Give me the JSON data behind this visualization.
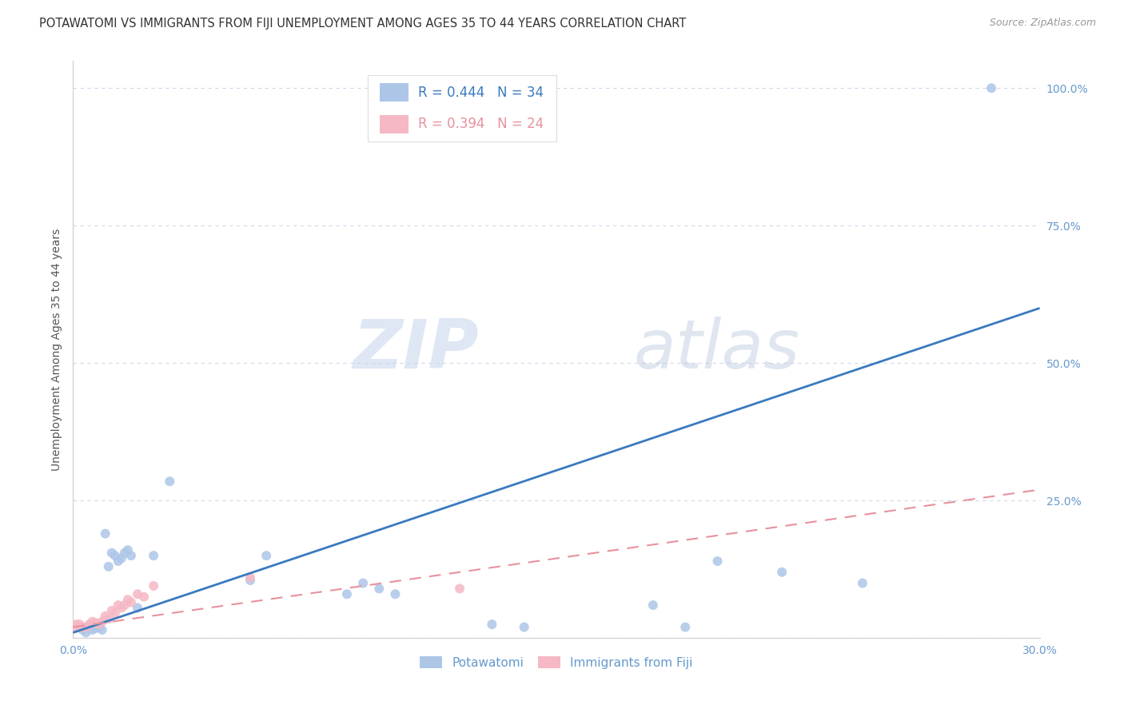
{
  "title": "POTAWATOMI VS IMMIGRANTS FROM FIJI UNEMPLOYMENT AMONG AGES 35 TO 44 YEARS CORRELATION CHART",
  "source": "Source: ZipAtlas.com",
  "ylabel": "Unemployment Among Ages 35 to 44 years",
  "legend_label1": "Potawatomi",
  "legend_label2": "Immigrants from Fiji",
  "r1": 0.444,
  "n1": 34,
  "r2": 0.394,
  "n2": 24,
  "xmin": 0.0,
  "xmax": 0.3,
  "ymin": 0.0,
  "ymax": 1.05,
  "xticks": [
    0.0,
    0.05,
    0.1,
    0.15,
    0.2,
    0.25,
    0.3
  ],
  "yticks": [
    0.0,
    0.25,
    0.5,
    0.75,
    1.0
  ],
  "ytick_labels": [
    "",
    "25.0%",
    "50.0%",
    "75.0%",
    "100.0%"
  ],
  "xtick_labels": [
    "0.0%",
    "",
    "",
    "",
    "",
    "",
    "30.0%"
  ],
  "axis_color": "#6699cc",
  "title_color": "#333333",
  "watermark_zip": "ZIP",
  "watermark_atlas": "atlas",
  "blue_scatter_x": [
    0.002,
    0.003,
    0.004,
    0.005,
    0.006,
    0.007,
    0.008,
    0.009,
    0.01,
    0.011,
    0.012,
    0.013,
    0.014,
    0.015,
    0.016,
    0.017,
    0.018,
    0.02,
    0.025,
    0.03,
    0.055,
    0.06,
    0.085,
    0.09,
    0.095,
    0.1,
    0.13,
    0.14,
    0.18,
    0.19,
    0.2,
    0.22,
    0.245,
    0.285
  ],
  "blue_scatter_y": [
    0.02,
    0.015,
    0.01,
    0.02,
    0.015,
    0.018,
    0.02,
    0.015,
    0.19,
    0.13,
    0.155,
    0.15,
    0.14,
    0.145,
    0.155,
    0.16,
    0.15,
    0.055,
    0.15,
    0.285,
    0.105,
    0.15,
    0.08,
    0.1,
    0.09,
    0.08,
    0.025,
    0.02,
    0.06,
    0.02,
    0.14,
    0.12,
    0.1,
    1.0
  ],
  "pink_scatter_x": [
    0.0,
    0.001,
    0.002,
    0.003,
    0.004,
    0.005,
    0.006,
    0.007,
    0.008,
    0.009,
    0.01,
    0.011,
    0.012,
    0.013,
    0.014,
    0.015,
    0.016,
    0.017,
    0.018,
    0.02,
    0.022,
    0.025,
    0.055,
    0.12
  ],
  "pink_scatter_y": [
    0.02,
    0.025,
    0.025,
    0.02,
    0.02,
    0.025,
    0.03,
    0.028,
    0.025,
    0.03,
    0.04,
    0.035,
    0.05,
    0.045,
    0.06,
    0.055,
    0.06,
    0.07,
    0.065,
    0.08,
    0.075,
    0.095,
    0.11,
    0.09
  ],
  "blue_line_x0": 0.0,
  "blue_line_x1": 0.3,
  "blue_line_y0": 0.01,
  "blue_line_y1": 0.6,
  "pink_line_x0": 0.0,
  "pink_line_x1": 0.3,
  "pink_line_y0": 0.02,
  "pink_line_y1": 0.27,
  "scatter_size": 75,
  "blue_scatter_color": "#adc6e8",
  "pink_scatter_color": "#f5b8c4",
  "blue_line_color": "#3a7abf",
  "pink_line_color": "#e8919e",
  "grid_color": "#d0d8e8",
  "bg_color": "#ffffff",
  "title_fontsize": 10.5,
  "axis_label_fontsize": 10,
  "tick_fontsize": 10,
  "legend_fontsize": 12
}
